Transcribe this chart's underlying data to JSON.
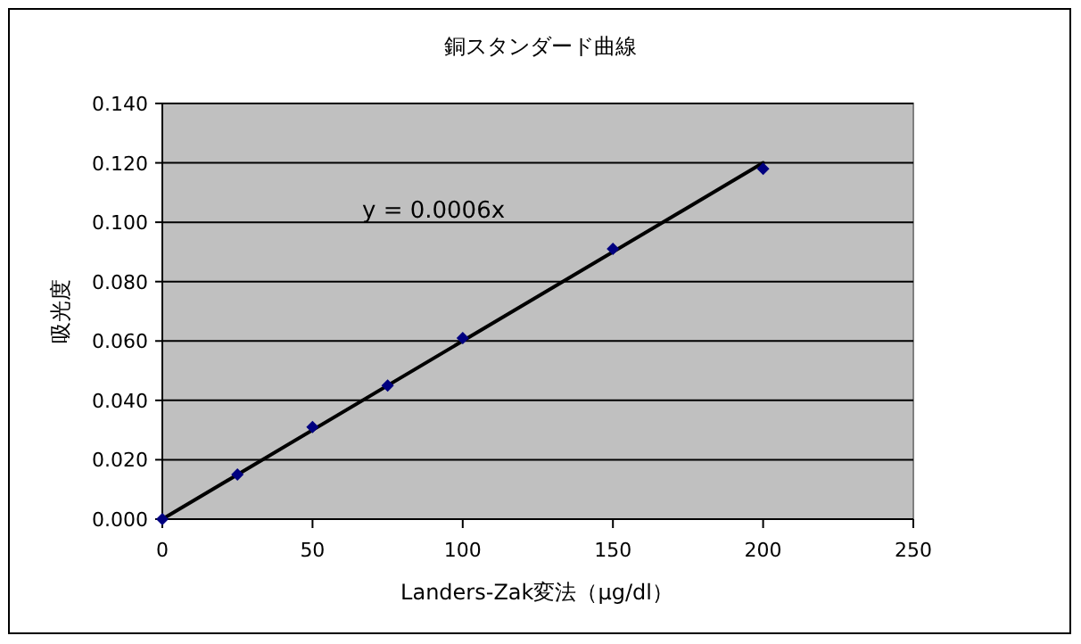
{
  "chart_data": {
    "type": "scatter",
    "title": "銅スタンダード曲線",
    "xlabel": "Landers-Zak変法（μg/dl）",
    "ylabel": "吸光度",
    "series": [
      {
        "color": "#000080",
        "marker": "diamond",
        "x": [
          0,
          25,
          50,
          75,
          100,
          150,
          200
        ],
        "values": [
          0,
          0.015,
          0.031,
          0.045,
          0.061,
          0.091,
          0.118
        ]
      },
      {
        "type": "line",
        "color": "#000000",
        "x": [
          0,
          200
        ],
        "values": [
          0,
          0.12
        ]
      }
    ],
    "annotations": [
      "y = 0.0006x"
    ],
    "xlim": [
      0,
      250
    ],
    "xticks": [
      0,
      50,
      100,
      150,
      200,
      250
    ],
    "ylim": [
      0,
      0.14
    ],
    "yticks": [
      {
        "value": 0,
        "label": "0.000"
      },
      {
        "value": 0.02,
        "label": "0.020"
      },
      {
        "value": 0.04,
        "label": "0.040"
      },
      {
        "value": 0.06,
        "label": "0.060"
      },
      {
        "value": 0.08,
        "label": "0.080"
      },
      {
        "value": 0.1,
        "label": "0.100"
      },
      {
        "value": 0.12,
        "label": "0.120"
      },
      {
        "value": 0.14,
        "label": "0.140"
      }
    ],
    "grid": "y",
    "line_style": "solid"
  }
}
